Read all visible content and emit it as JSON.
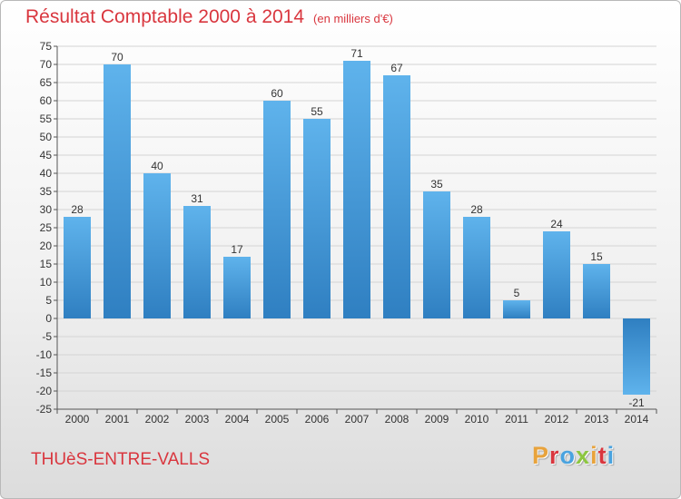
{
  "header": {
    "title": "Résultat Comptable 2000 à 2014",
    "unit": "(en milliers d'€)"
  },
  "footer": {
    "commune": "THUèS-ENTRE-VALLS",
    "logo_text": "Proxiti",
    "logo_colors": [
      "#e8a33c",
      "#d9363e",
      "#4aa3df",
      "#8cc63f",
      "#e8a33c",
      "#d9363e",
      "#4aa3df"
    ]
  },
  "colors": {
    "title": "#d9363e",
    "bar_light": "#5fb3ec",
    "bar_dark": "#2f7fc1",
    "grid": "#d4d4d4",
    "axis": "#555555"
  },
  "chart_data": {
    "type": "bar",
    "categories": [
      "2000",
      "2001",
      "2002",
      "2003",
      "2004",
      "2005",
      "2006",
      "2007",
      "2008",
      "2009",
      "2010",
      "2011",
      "2012",
      "2013",
      "2014"
    ],
    "values": [
      28,
      70,
      40,
      31,
      17,
      60,
      55,
      71,
      67,
      35,
      28,
      5,
      24,
      15,
      -21
    ],
    "data_labels": [
      "28",
      "70",
      "40",
      "31",
      "17",
      "60",
      "55",
      "71",
      "67",
      "35",
      "28",
      "5",
      "24",
      "15",
      "-21"
    ],
    "y_ticks": [
      75,
      70,
      65,
      60,
      55,
      50,
      45,
      40,
      35,
      30,
      25,
      20,
      15,
      10,
      5,
      0,
      -5,
      -10,
      -15,
      -20,
      -25
    ],
    "ylim": [
      -25,
      75
    ],
    "grid": true
  }
}
